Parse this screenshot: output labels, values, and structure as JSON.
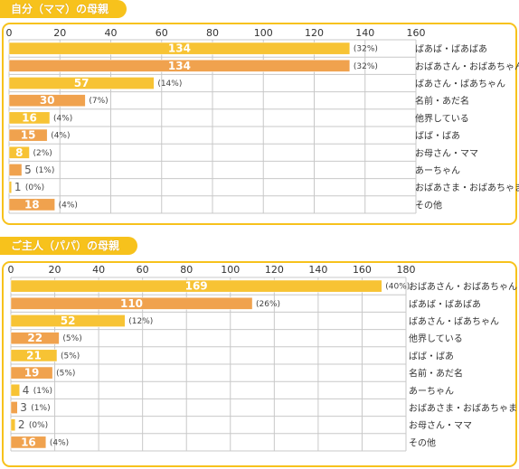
{
  "chart_data": [
    {
      "type": "bar",
      "orientation": "horizontal",
      "title": "自分（ママ）の母親",
      "x_ticks": [
        "0",
        "20",
        "40",
        "60",
        "80",
        "100",
        "120",
        "140",
        "160"
      ],
      "xlim": [
        0,
        160
      ],
      "grid": true,
      "categories": [
        "ばあば・ばあばあ",
        "おばあさん・おばあちゃん",
        "ばあさん・ばあちゃん",
        "名前・あだ名",
        "他界している",
        "ばば・ばあ",
        "お母さん・ママ",
        "あーちゃん",
        "おばあさま・おばあちゃま",
        "その他"
      ],
      "values": [
        134,
        134,
        57,
        30,
        16,
        15,
        8,
        5,
        1,
        18
      ],
      "value_labels": [
        "134",
        "134",
        "57",
        "30",
        "16",
        "15",
        "8",
        "5",
        "1",
        "18"
      ],
      "percent_labels": [
        "(32%)",
        "(32%)",
        "(14%)",
        "(7%)",
        "(4%)",
        "(4%)",
        "(2%)",
        "(1%)",
        "(0%)",
        "(4%)"
      ],
      "colors": [
        "#f7c334",
        "#f0a24e",
        "#f7c334",
        "#f0a24e",
        "#f7c334",
        "#f0a24e",
        "#f7c334",
        "#f0a24e",
        "#f7c334",
        "#f0a24e"
      ]
    },
    {
      "type": "bar",
      "orientation": "horizontal",
      "title": "ご主人（パパ）の母親",
      "x_ticks": [
        "0",
        "20",
        "40",
        "60",
        "80",
        "100",
        "120",
        "140",
        "160",
        "180"
      ],
      "xlim": [
        0,
        180
      ],
      "grid": true,
      "categories": [
        "おばあさん・おばあちゃん",
        "ばあば・ばあばあ",
        "ばあさん・ばあちゃん",
        "他界している",
        "ばば・ばあ",
        "名前・あだ名",
        "あーちゃん",
        "おばあさま・おばあちゃま",
        "お母さん・ママ",
        "その他"
      ],
      "values": [
        169,
        110,
        52,
        22,
        21,
        19,
        4,
        3,
        2,
        16
      ],
      "value_labels": [
        "169",
        "110",
        "52",
        "22",
        "21",
        "19",
        "4",
        "3",
        "2",
        "16"
      ],
      "percent_labels": [
        "(40%)",
        "(26%)",
        "(12%)",
        "(5%)",
        "(5%)",
        "(5%)",
        "(1%)",
        "(1%)",
        "(0%)",
        "(4%)"
      ],
      "colors": [
        "#f7c334",
        "#f0a24e",
        "#f7c334",
        "#f0a24e",
        "#f7c334",
        "#f0a24e",
        "#f7c334",
        "#f0a24e",
        "#f7c334",
        "#f0a24e"
      ]
    }
  ],
  "style": {
    "frame_color": "#f7c21c",
    "grid_color": "#c8c8c8",
    "tab_color": "#f7c21c"
  }
}
